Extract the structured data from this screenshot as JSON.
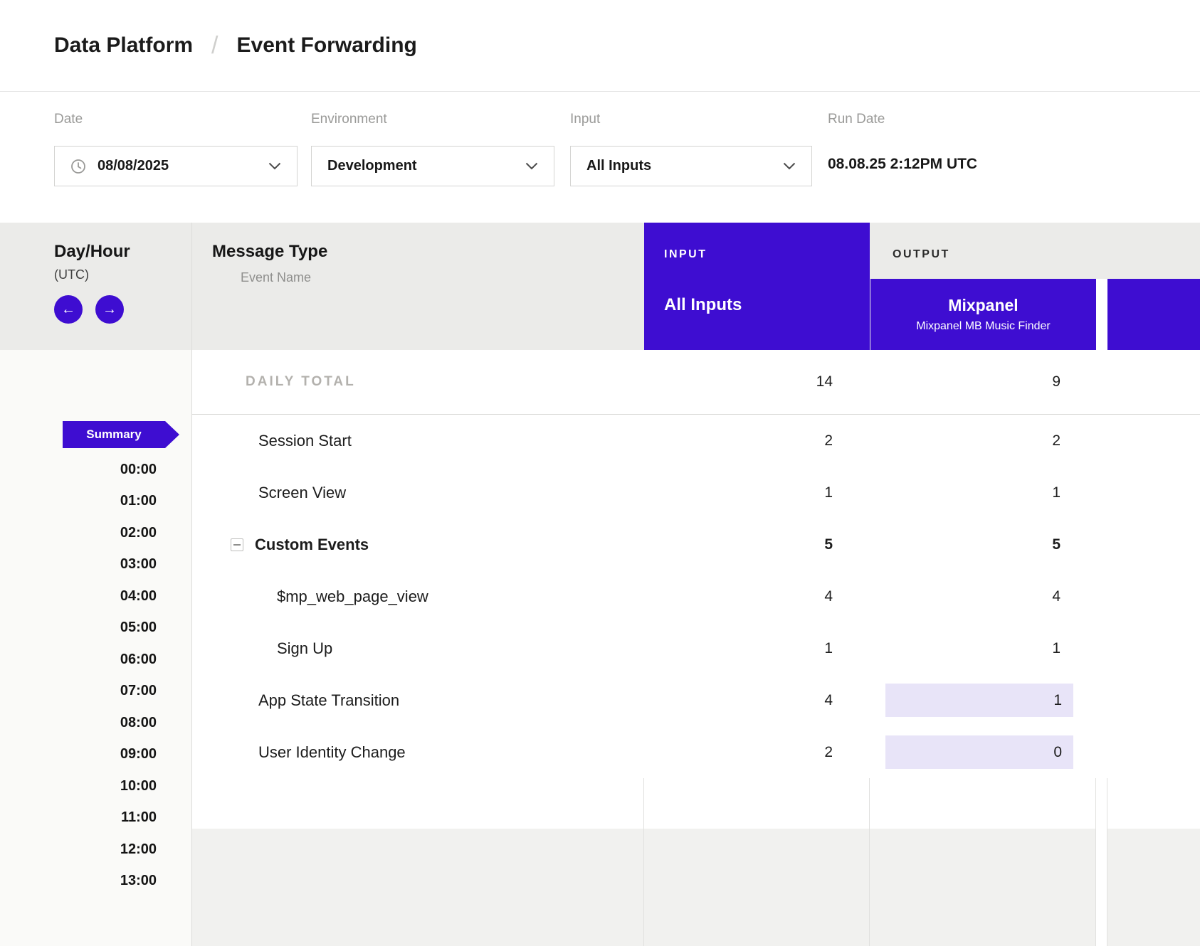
{
  "colors": {
    "accent": "#3e0dd1",
    "highlight_cell": "#e8e4f8"
  },
  "icons": {
    "arrow_left": "←",
    "arrow_right": "→"
  },
  "breadcrumb": {
    "section": "Data Platform",
    "separator": "/",
    "page": "Event Forwarding"
  },
  "filters": {
    "date": {
      "label": "Date",
      "value": "08/08/2025"
    },
    "environment": {
      "label": "Environment",
      "value": "Development"
    },
    "input": {
      "label": "Input",
      "value": "All Inputs"
    },
    "run_date": {
      "label": "Run Date",
      "value": "08.08.25 2:12PM UTC"
    }
  },
  "table": {
    "day_hour": {
      "title": "Day/Hour",
      "subtitle": "(UTC)"
    },
    "message_type": {
      "title": "Message Type",
      "subtitle": "Event Name"
    },
    "input_col": {
      "label": "INPUT",
      "value": "All Inputs"
    },
    "output": {
      "label": "OUTPUT",
      "connections": [
        {
          "name": "Mixpanel",
          "subtitle": "Mixpanel MB Music Finder"
        }
      ]
    },
    "daily_total": {
      "label": "DAILY TOTAL",
      "input": "14",
      "output": "9"
    },
    "rows": [
      {
        "name": "Session Start",
        "input": "2",
        "output": "2"
      },
      {
        "name": "Screen View",
        "input": "1",
        "output": "1"
      },
      {
        "name": "Custom Events",
        "input": "5",
        "output": "5",
        "bold": true,
        "collapsible": true
      },
      {
        "name": "$mp_web_page_view",
        "input": "4",
        "output": "4",
        "indent": true
      },
      {
        "name": "Sign Up",
        "input": "1",
        "output": "1",
        "indent": true
      },
      {
        "name": "App State Transition",
        "input": "4",
        "output": "1",
        "highlight": true
      },
      {
        "name": "User Identity Change",
        "input": "2",
        "output": "0",
        "highlight": true
      }
    ],
    "time_rail": {
      "summary": "Summary",
      "hours": [
        "00:00",
        "01:00",
        "02:00",
        "03:00",
        "04:00",
        "05:00",
        "06:00",
        "07:00",
        "08:00",
        "09:00",
        "10:00",
        "11:00",
        "12:00",
        "13:00"
      ]
    }
  }
}
